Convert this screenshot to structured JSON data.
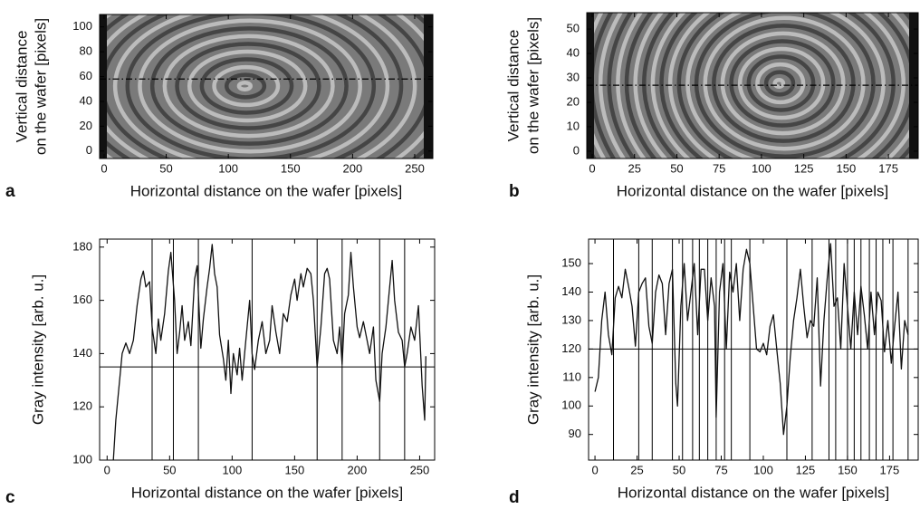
{
  "chart_data": [
    {
      "type": "image",
      "panel_label": "a",
      "xlabel": "Horizontal distance on the wafer [pixels]",
      "ylabel": [
        "Vertical distance",
        "on the wafer [pixels]"
      ],
      "xlim": [
        -3.6,
        264.6
      ],
      "ylim": [
        -6,
        110
      ],
      "xticks": [
        0,
        50,
        100,
        150,
        200,
        250
      ],
      "yticks": [
        0,
        20,
        40,
        60,
        80,
        100
      ],
      "cut_y": 58
    },
    {
      "type": "image",
      "panel_label": "b",
      "xlabel": "Horizontal distance on the wafer [pixels]",
      "ylabel": [
        "Vertical distance",
        "on the wafer [pixels]"
      ],
      "xlim": [
        -3.2,
        192.6
      ],
      "ylim": [
        -3,
        56.7
      ],
      "xticks": [
        0,
        25,
        50,
        75,
        100,
        125,
        150,
        175
      ],
      "yticks": [
        0,
        10,
        20,
        30,
        40,
        50
      ],
      "cut_y": 27
    },
    {
      "type": "line",
      "panel_label": "c",
      "xlabel": "Horizontal distance on the wafer [pixels]",
      "ylabel": [
        "Gray intensity [arb. u.]"
      ],
      "xlim": [
        -6,
        262
      ],
      "ylim": [
        100,
        183
      ],
      "xticks": [
        0,
        50,
        100,
        150,
        200,
        250
      ],
      "yticks": [
        100,
        120,
        140,
        160,
        180
      ],
      "color": "#111111",
      "hline": 135,
      "vlines": [
        36,
        53,
        73,
        116,
        168,
        188,
        218,
        238
      ],
      "x": [
        5,
        7,
        9,
        12,
        15,
        18,
        21,
        24,
        27,
        29,
        31,
        34,
        36,
        39,
        41,
        43,
        46,
        49,
        51,
        54,
        56,
        58,
        60,
        62,
        65,
        67,
        70,
        72,
        75,
        77,
        80,
        82,
        84,
        86,
        88,
        90,
        93,
        95,
        97,
        99,
        101,
        104,
        106,
        108,
        111,
        114,
        116,
        118,
        121,
        124,
        127,
        130,
        132,
        135,
        138,
        141,
        144,
        147,
        150,
        152,
        155,
        157,
        160,
        163,
        165,
        168,
        171,
        174,
        176,
        178,
        181,
        184,
        186,
        188,
        190,
        193,
        195,
        197,
        200,
        202,
        205,
        208,
        210,
        213,
        215,
        218,
        220,
        223,
        226,
        228,
        230,
        233,
        236,
        238,
        240,
        243,
        246,
        249,
        252,
        254,
        255
      ],
      "values": [
        100,
        115,
        125,
        140,
        144,
        140,
        145,
        158,
        168,
        171,
        165,
        167,
        150,
        140,
        153,
        145,
        155,
        171,
        178,
        160,
        140,
        148,
        158,
        145,
        152,
        143,
        168,
        173,
        142,
        153,
        165,
        172,
        181,
        170,
        165,
        147,
        138,
        130,
        145,
        125,
        140,
        132,
        142,
        130,
        145,
        160,
        140,
        134,
        145,
        152,
        140,
        145,
        158,
        148,
        140,
        155,
        152,
        162,
        168,
        160,
        170,
        165,
        172,
        170,
        160,
        135,
        150,
        170,
        172,
        168,
        145,
        140,
        150,
        136,
        155,
        162,
        178,
        165,
        150,
        146,
        152,
        145,
        140,
        150,
        130,
        122,
        140,
        150,
        165,
        175,
        160,
        148,
        145,
        135,
        140,
        150,
        145,
        158,
        128,
        115,
        139
      ]
    },
    {
      "type": "line",
      "panel_label": "d",
      "xlabel": "Horizontal distance on the wafer [pixels]",
      "ylabel": [
        "Gray intensity [arb. u.]"
      ],
      "xlim": [
        -3.8,
        192
      ],
      "ylim": [
        81,
        158.6
      ],
      "xticks": [
        0,
        25,
        50,
        75,
        100,
        125,
        150,
        175
      ],
      "yticks": [
        90,
        100,
        110,
        120,
        130,
        140,
        150
      ],
      "color": "#111111",
      "hline": 120,
      "vlines": [
        11,
        26,
        34,
        46,
        52,
        58,
        62,
        67,
        72,
        77,
        81,
        92,
        114,
        129,
        139,
        143,
        150,
        154,
        158,
        163,
        167,
        171,
        177,
        186
      ],
      "x": [
        0,
        2,
        4,
        6,
        8,
        10,
        12,
        14,
        16,
        18,
        20,
        22,
        24,
        26,
        28,
        30,
        32,
        34,
        36,
        38,
        40,
        42,
        44,
        46,
        48,
        49,
        51,
        53,
        55,
        57,
        59,
        61,
        63,
        65,
        67,
        69,
        71,
        72,
        74,
        76,
        78,
        80,
        82,
        84,
        86,
        88,
        90,
        92,
        94,
        96,
        98,
        100,
        102,
        104,
        106,
        108,
        110,
        112,
        114,
        116,
        118,
        120,
        122,
        124,
        126,
        128,
        130,
        132,
        134,
        136,
        138,
        140,
        142,
        144,
        146,
        148,
        150,
        152,
        154,
        156,
        158,
        160,
        162,
        164,
        166,
        168,
        170,
        172,
        174,
        176,
        178,
        180,
        182,
        184,
        186
      ],
      "values": [
        105,
        110,
        130,
        140,
        125,
        118,
        138,
        142,
        138,
        148,
        142,
        135,
        121,
        140,
        143,
        145,
        128,
        122,
        140,
        146,
        143,
        125,
        143,
        148,
        108,
        100,
        135,
        150,
        130,
        140,
        150,
        125,
        148,
        148,
        130,
        145,
        135,
        96,
        140,
        150,
        120,
        147,
        140,
        150,
        130,
        148,
        155,
        150,
        135,
        120,
        119,
        122,
        118,
        128,
        132,
        120,
        108,
        90,
        100,
        117,
        130,
        138,
        148,
        135,
        124,
        130,
        128,
        145,
        107,
        130,
        145,
        157,
        135,
        138,
        120,
        150,
        135,
        120,
        140,
        125,
        142,
        132,
        120,
        140,
        125,
        140,
        137,
        119,
        130,
        115,
        128,
        140,
        113,
        130,
        125
      ]
    }
  ]
}
